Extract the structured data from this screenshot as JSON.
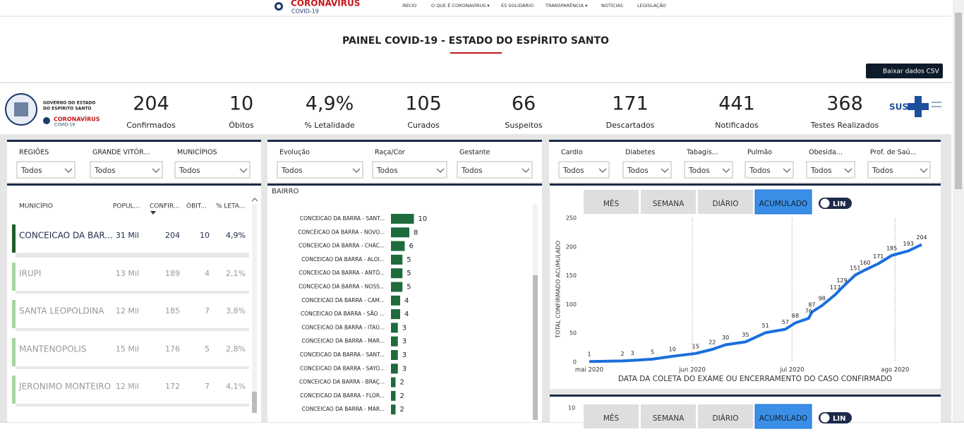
{
  "nav": {
    "logo_title": "CORONAVÍRUS",
    "logo_sub": "COVID-19",
    "links": [
      "INÍCIO",
      "O QUE É CORONAVÍRUS ▾",
      "ES SOLIDÁRIO",
      "TRANSPARÊNCIA ▾",
      "NOTÍCIAS",
      "LEGISLAÇÃO"
    ]
  },
  "header": {
    "title": "PAINEL COVID-19 - ESTADO DO ESPÍRITO SANTO",
    "download": "Baixar dados CSV"
  },
  "gov": {
    "line1": "GOVERNO DO ESTADO",
    "line2": "DO ESPÍRITO SANTO",
    "brand": "CORONAVÍRUS",
    "brand_sub": "COVID-19",
    "sus": "SUS"
  },
  "kpis": [
    {
      "value": 204,
      "label": "Confirmados"
    },
    {
      "value": 10,
      "label": "Óbitos"
    },
    {
      "value": "4,9%",
      "label": "% Letalidade"
    },
    {
      "value": 105,
      "label": "Curados"
    },
    {
      "value": 66,
      "label": "Suspeitos"
    },
    {
      "value": 171,
      "label": "Descartados"
    },
    {
      "value": 441,
      "label": "Notificados"
    },
    {
      "value": 368,
      "label": "Testes Realizados"
    }
  ],
  "filters": [
    [
      {
        "label": "REGIÕES",
        "value": "Todos"
      },
      {
        "label": "GRANDE VITÓR...",
        "value": "Todos"
      },
      {
        "label": "MUNICÍPIOS",
        "value": "Todos"
      }
    ],
    [
      {
        "label": "Evolução",
        "value": "Todos"
      },
      {
        "label": "Raça/Cor",
        "value": "Todos"
      },
      {
        "label": "Gestante",
        "value": "Todos"
      }
    ],
    [
      {
        "label": "Cardio",
        "value": "Todos"
      },
      {
        "label": "Diabetes",
        "value": "Todos"
      },
      {
        "label": "Tabagis...",
        "value": "Todos"
      },
      {
        "label": "Pulmão",
        "value": "Todos"
      },
      {
        "label": "Obesida...",
        "value": "Todos"
      },
      {
        "label": "Prof. de Saú...",
        "value": "Todos"
      }
    ]
  ],
  "table": {
    "columns": [
      "MUNICÍPIO",
      "POPUL...",
      "CONFIR...",
      "ÓBIT...",
      "% LETA..."
    ],
    "rows": [
      [
        "CONCEICAO DA BAR...",
        "31 Mil",
        204,
        10,
        "4,9%"
      ],
      [
        "IRUPI",
        "13 Mil",
        189,
        4,
        "2,1%"
      ],
      [
        "SANTA LEOPOLDINA",
        "12 Mil",
        185,
        7,
        "3,8%"
      ],
      [
        "MANTENOPOLIS",
        "15 Mil",
        176,
        5,
        "2,8%"
      ],
      [
        "JERONIMO MONTEIRO",
        "12 Mil",
        172,
        7,
        "4,1%"
      ]
    ]
  },
  "bairro_chart": {
    "type": "bar",
    "title": "BAIRRO",
    "color": "#1e6b3c",
    "categories": [
      "CONCEICAO DA BARRA - SANT...",
      "CONCEICAO DA BARRA - NOVO...",
      "CONCEICAO DA BARRA - CHÁC...",
      "CONCEICAO DA BARRA - ALOI...",
      "CONCEICAO DA BARRA - ANTÔ...",
      "CONCEICAO DA BARRA - NOSS...",
      "CONCEICAO DA BARRA - CAM...",
      "CONCEICAO DA BARRA - SÃO ...",
      "CONCEICAO DA BARRA - ITAÚ...",
      "CONCEICAO DA BARRA - MAR...",
      "CONCEICAO DA BARRA - SANT...",
      "CONCEICAO DA BARRA - SAYO...",
      "CONCEICAO DA BARRA - BRAÇ...",
      "CONCEICAO DA BARRA - FLOR...",
      "CONCEICAO DA BARRA - MAR..."
    ],
    "values": [
      10,
      8,
      6,
      5,
      5,
      5,
      4,
      4,
      3,
      3,
      3,
      3,
      2,
      2,
      2
    ]
  },
  "line_chart": {
    "type": "line",
    "buttons": [
      "MÊS",
      "SEMANA",
      "DIÁRIO",
      "ACUMULADO"
    ],
    "toggle": "LIN",
    "ylabel": "TOTAL CONFIRMADO ACUMULADO",
    "xlabel": "DATA DA COLETA DO EXAME OU ENCERRAMENTO DO CASO CONFIRMADO",
    "color": "#1a6fdc",
    "x": [
      0,
      10,
      13,
      19,
      25,
      32,
      37,
      41,
      47,
      53,
      59,
      62,
      66,
      67,
      70,
      74,
      76,
      80,
      83,
      87,
      91,
      96,
      100
    ],
    "values": [
      1,
      2,
      3,
      5,
      10,
      15,
      22,
      30,
      35,
      51,
      57,
      68,
      76,
      87,
      98,
      117,
      129,
      151,
      160,
      171,
      185,
      193,
      204
    ],
    "xlim": [
      0,
      100
    ],
    "xticks": [
      {
        "value": 0,
        "label": "mai 2020"
      },
      {
        "value": 31,
        "label": "jun 2020"
      },
      {
        "value": 61,
        "label": "jul 2020"
      },
      {
        "value": 92,
        "label": "ago 2020"
      }
    ],
    "ylim": [
      0,
      250
    ],
    "yticks": [
      0,
      50,
      100,
      150,
      200,
      250
    ],
    "grid": true
  },
  "second_chart": {
    "buttons": [
      "MÊS",
      "SEMANA",
      "DIÁRIO",
      "ACUMULADO"
    ],
    "toggle": "LIN",
    "ytick": 10
  }
}
